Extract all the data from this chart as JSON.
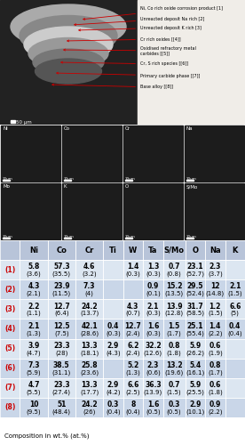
{
  "bse_image_placeholder": true,
  "edx_labels": [
    "Ni",
    "Co",
    "Cr",
    "Na",
    "Mo",
    "K",
    "O",
    "S/Mo"
  ],
  "annotations": [
    {
      "num": "1",
      "text": "Ni, Co rich oxide corrosion product"
    },
    {
      "num": "2",
      "text": "Unreacted deposit Na rich"
    },
    {
      "num": "3",
      "text": "Unreacted deposit K rich"
    },
    {
      "num": "4",
      "text": "Cr rich oxides"
    },
    {
      "num": "5",
      "text": "Oxidised refractory metal\ncarbides"
    },
    {
      "num": "6",
      "text": "Cr, S rich species"
    },
    {
      "num": "7",
      "text": "Primary carbide phase"
    },
    {
      "num": "8",
      "text": "Base alloy"
    }
  ],
  "table_headers": [
    "Ni",
    "Co",
    "Cr",
    "Ti",
    "W",
    "Ta",
    "S/Mo",
    "O",
    "Na",
    "K"
  ],
  "rows": [
    {
      "label": "(1)",
      "wt": [
        "5.8",
        "57.3",
        "4.6",
        "",
        "1.4",
        "1.3",
        "0.7",
        "23.1",
        "2.3",
        ""
      ],
      "at": [
        "(3.6)",
        "(35.5)",
        "(3.2)",
        "",
        "(0.3)",
        "(0.3)",
        "(0.8)",
        "(52.7)",
        "(3.7)",
        ""
      ]
    },
    {
      "label": "(2)",
      "wt": [
        "4.3",
        "23.9",
        "7.3",
        "",
        "",
        "0.9",
        "15.2",
        "29.5",
        "12",
        "2.1"
      ],
      "at": [
        "(2.1)",
        "(11.5)",
        "(4)",
        "",
        "",
        "(0.1)",
        "(13.5)",
        "(52.4)",
        "(14.8)",
        "(1.5)"
      ]
    },
    {
      "label": "(3)",
      "wt": [
        "2.2",
        "12.7",
        "24.2",
        "",
        "4.3",
        "2.1",
        "13.9",
        "31.7",
        "1.2",
        "6.6"
      ],
      "at": [
        "(1.1)",
        "(6.4)",
        "(13.7)",
        "",
        "(0.7)",
        "(0.3)",
        "(12.8)",
        "(58.5)",
        "(1.5)",
        "(5)"
      ]
    },
    {
      "label": "(4)",
      "wt": [
        "2.1",
        "12.5",
        "42.1",
        "0.4",
        "12.7",
        "1.6",
        "1.5",
        "25.1",
        "1.4",
        "0.4"
      ],
      "at": [
        "(1.3)",
        "(7.5)",
        "(28.6)",
        "(0.3)",
        "(2.4)",
        "(0.3)",
        "(1.7)",
        "(55.4)",
        "(2.2)",
        "(0.4)"
      ]
    },
    {
      "label": "(5)",
      "wt": [
        "3.9",
        "23.3",
        "13.3",
        "2.9",
        "6.2",
        "32.2",
        "0.8",
        "5.9",
        "0.6",
        ""
      ],
      "at": [
        "(4.7)",
        "(28)",
        "(18.1)",
        "(4.3)",
        "(2.4)",
        "(12.6)",
        "(1.8)",
        "(26.2)",
        "(1.9)",
        ""
      ]
    },
    {
      "label": "(6)",
      "wt": [
        "7.3",
        "38.5",
        "25.8",
        "",
        "5.2",
        "2.3",
        "13.2",
        "5.4",
        "0.8",
        ""
      ],
      "at": [
        "(5.9)",
        "(31.1)",
        "(23.6)",
        "",
        "(1.3)",
        "(0.6)",
        "(19.6)",
        "(16.1)",
        "(1.7)",
        ""
      ]
    },
    {
      "label": "(7)",
      "wt": [
        "4.7",
        "23.3",
        "13.3",
        "2.9",
        "6.6",
        "36.3",
        "0.7",
        "5.9",
        "0.6",
        ""
      ],
      "at": [
        "(5.5)",
        "(27.4)",
        "(17.7)",
        "(4.2)",
        "(2.5)",
        "(13.9)",
        "(1.5)",
        "(25.5)",
        "(1.8)",
        ""
      ]
    },
    {
      "label": "(8)",
      "wt": [
        "10",
        "51",
        "24.2",
        "0.3",
        "8",
        "1.6",
        "0.3",
        "2.9",
        "0.9",
        ""
      ],
      "at": [
        "(9.5)",
        "(48.4)",
        "(26)",
        "(0.4)",
        "(0.4)",
        "(0.5)",
        "(0.5)",
        "(10.1)",
        "(2.2)",
        ""
      ]
    }
  ],
  "footer_text": "Composition in wt.% (at.%)",
  "scale_bar": "50 μm",
  "annotation_color": "#cc0000",
  "header_bg": "#b8c4d9",
  "row_bg_light": "#dce6f1",
  "row_bg_dark": "#c9d6e8",
  "label_color": "#cc0000",
  "text_color": "#000000",
  "table_font_size": 5.5,
  "header_font_size": 6.0
}
